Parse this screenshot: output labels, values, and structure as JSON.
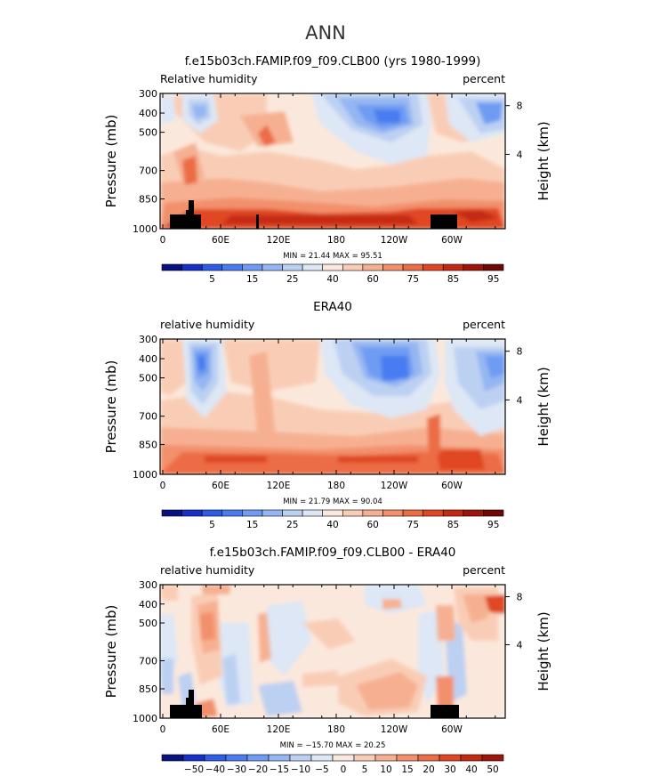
{
  "figure": {
    "title": "ANN"
  },
  "chart_data": [
    {
      "type": "heatmap",
      "title": "f.e15b03ch.FAMIP.f09_f09.CLB00 (yrs 1980-1999)",
      "left_label": "Relative humidity",
      "right_label": "percent",
      "ylabel": "Pressure (mb)",
      "y2label": "Height (km)",
      "x_ticks": [
        "0",
        "60E",
        "120E",
        "180",
        "120W",
        "60W"
      ],
      "y_ticks": [
        "300",
        "400",
        "500",
        "700",
        "850",
        "1000"
      ],
      "y2_ticks": [
        "8",
        "4"
      ],
      "stats": "MIN =   21.44   MAX =   95.51",
      "colorbar_ticks": [
        "5",
        "15",
        "25",
        "40",
        "60",
        "75",
        "85",
        "95"
      ],
      "grid": false
    },
    {
      "type": "heatmap",
      "title": "ERA40",
      "left_label": "relative humidity",
      "right_label": "percent",
      "ylabel": "Pressure (mb)",
      "y2label": "Height (km)",
      "x_ticks": [
        "0",
        "60E",
        "120E",
        "180",
        "120W",
        "60W"
      ],
      "y_ticks": [
        "300",
        "400",
        "500",
        "700",
        "850",
        "1000"
      ],
      "y2_ticks": [
        "8",
        "4"
      ],
      "stats": "MIN =   21.79   MAX =   90.04",
      "colorbar_ticks": [
        "5",
        "15",
        "25",
        "40",
        "60",
        "75",
        "85",
        "95"
      ],
      "grid": false
    },
    {
      "type": "heatmap",
      "title": "f.e15b03ch.FAMIP.f09_f09.CLB00 - ERA40",
      "left_label": "relative humidity",
      "right_label": "percent",
      "ylabel": "Pressure (mb)",
      "y2label": "Height (km)",
      "x_ticks": [
        "0",
        "60E",
        "120E",
        "180",
        "120W",
        "60W"
      ],
      "y_ticks": [
        "300",
        "400",
        "500",
        "700",
        "850",
        "1000"
      ],
      "y2_ticks": [
        "8",
        "4"
      ],
      "stats": "MIN = −15.70   MAX =   20.25",
      "colorbar_ticks": [
        "−50",
        "−40",
        "−30",
        "−20",
        "−15",
        "−10",
        "−5",
        "0",
        "5",
        "10",
        "15",
        "20",
        "30",
        "40",
        "50"
      ],
      "grid": false
    }
  ],
  "colors": {
    "abs_scale": [
      "#08127e",
      "#1430c8",
      "#2f5ce6",
      "#4a7cf0",
      "#6e9cf2",
      "#95b6f2",
      "#bcd0f2",
      "#dde7f5",
      "#fbe8dc",
      "#f9cdb5",
      "#f6b091",
      "#f2906c",
      "#ec6c44",
      "#e04624",
      "#c42a12",
      "#9e1408",
      "#6e0804"
    ],
    "diff_scale": [
      "#08127e",
      "#1430c8",
      "#2f5ce6",
      "#4a7cf0",
      "#6e9cf2",
      "#95b6f2",
      "#bcd0f2",
      "#dde7f5",
      "#fbe8dc",
      "#f9cdb5",
      "#f6b091",
      "#f2906c",
      "#ec6c44",
      "#e04624",
      "#c42a12",
      "#9e1408"
    ],
    "topography": "#000000"
  }
}
